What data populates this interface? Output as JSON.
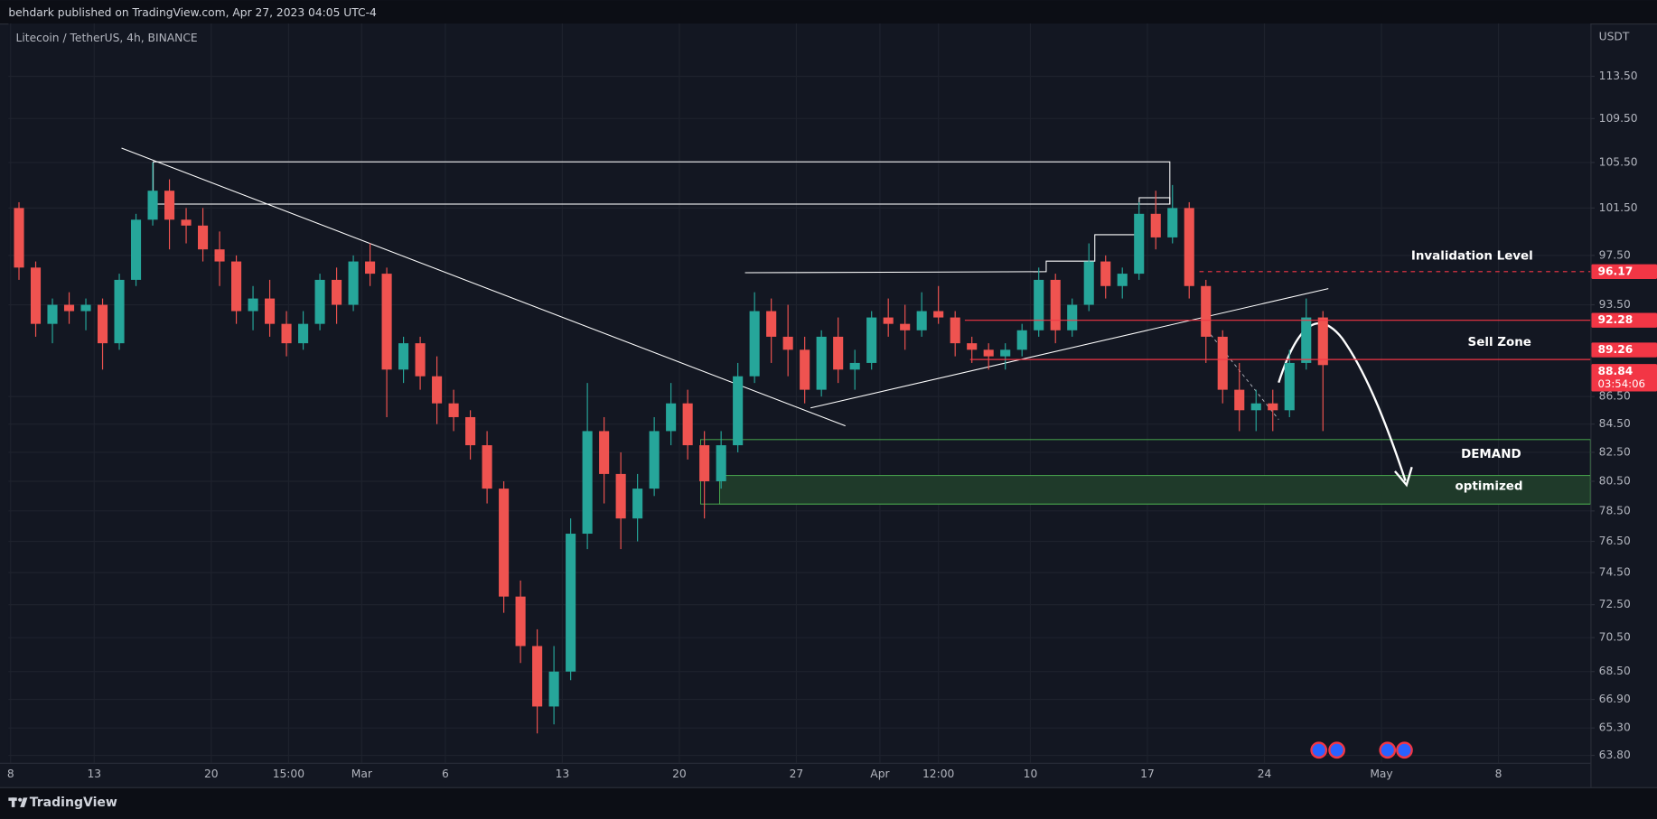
{
  "header": {
    "publisher": "behdark published on TradingView.com, Apr 27, 2023 04:05 UTC-4"
  },
  "footer": {
    "brand": "TradingView"
  },
  "chart_data": {
    "type": "candlestick",
    "title": "Litecoin / TetherUS, 4h, BINANCE",
    "y_axis_label": "USDT",
    "log_scale": true,
    "grid": true,
    "up_color": "#26a69a",
    "down_color": "#ef5350",
    "x": [
      0,
      1,
      2,
      3,
      4,
      5,
      6,
      7,
      8,
      9,
      10,
      11,
      12,
      13,
      14,
      15,
      16,
      17,
      18,
      19,
      20,
      21,
      22,
      23,
      24,
      25,
      26,
      27,
      28,
      29,
      30,
      31,
      32,
      33,
      34,
      35,
      36,
      37,
      38,
      39,
      40,
      41,
      42,
      43,
      44,
      45,
      46,
      47,
      48,
      49,
      50,
      51,
      52,
      53,
      54,
      55,
      56,
      57,
      58,
      59,
      60,
      61,
      62,
      63,
      64,
      65,
      66,
      67,
      68,
      69,
      70,
      71,
      72,
      73,
      74,
      75,
      76,
      77,
      78
    ],
    "open": [
      101.5,
      96.5,
      92,
      93.5,
      93,
      93.5,
      90.5,
      95.5,
      100.5,
      103,
      100.5,
      100,
      98,
      97,
      93,
      94,
      92,
      90.5,
      92,
      95.5,
      93.5,
      97,
      96,
      88.5,
      90.5,
      88,
      86,
      85,
      83,
      80,
      73,
      70,
      66.5,
      68.5,
      77,
      84,
      81,
      78,
      80,
      84,
      86,
      83,
      80.5,
      83,
      88,
      93,
      91,
      90,
      87,
      91,
      88.5,
      89,
      92.5,
      92,
      91.5,
      93,
      92.5,
      90.5,
      90,
      89.5,
      90,
      91.5,
      95.5,
      91.5,
      93.5,
      97,
      95,
      96,
      101,
      99,
      101.5,
      95,
      91,
      87,
      85.5,
      86,
      85.5,
      89,
      92.5
    ],
    "high": [
      102,
      97,
      94,
      94.5,
      94,
      94,
      96,
      101,
      105.5,
      104,
      101.5,
      101.5,
      99.5,
      97.5,
      95,
      95.5,
      93,
      93,
      96,
      96.5,
      97.5,
      98.5,
      96.5,
      91,
      91,
      89.5,
      87,
      85.5,
      84,
      80.5,
      74,
      71,
      70,
      78,
      87.5,
      85,
      82.5,
      81,
      85,
      87.5,
      87,
      84,
      84,
      89,
      94.5,
      94,
      93.5,
      91,
      91.5,
      92.5,
      90,
      93,
      94,
      93.5,
      94.5,
      95,
      93,
      91,
      90.5,
      90.5,
      92,
      96.5,
      96,
      94,
      98.5,
      97.5,
      96.5,
      102,
      103,
      103.5,
      102,
      95.5,
      91.5,
      89,
      87,
      87,
      90,
      94,
      93
    ],
    "low": [
      95.5,
      91,
      90.5,
      92,
      91.5,
      88.5,
      90,
      95,
      100,
      98,
      98.5,
      97,
      95,
      92,
      91.5,
      91,
      89.5,
      90,
      91.5,
      92,
      93,
      95,
      85,
      87.5,
      87,
      84.5,
      84,
      82,
      79,
      72,
      69,
      65,
      65.5,
      68,
      76,
      79,
      76,
      76.5,
      79.5,
      83,
      82,
      78,
      80,
      82.5,
      87.5,
      89,
      88,
      86,
      86.5,
      87.5,
      87,
      88.5,
      91,
      90,
      91,
      92,
      89.5,
      89,
      88.5,
      88.5,
      89.5,
      91,
      90.5,
      91,
      93,
      94,
      94,
      95.5,
      98,
      98.5,
      94,
      89,
      86,
      84,
      84,
      84,
      85,
      88.5,
      84
    ],
    "close": [
      96.5,
      92,
      93.5,
      93,
      93.5,
      90.5,
      95.5,
      100.5,
      103,
      100.5,
      100,
      98,
      97,
      93,
      94,
      92,
      90.5,
      92,
      95.5,
      93.5,
      97,
      96,
      88.5,
      90.5,
      88,
      86,
      85,
      83,
      80,
      73,
      70,
      66.5,
      68.5,
      77,
      84,
      81,
      78,
      80,
      84,
      86,
      83,
      80.5,
      83,
      88,
      93,
      91,
      90,
      87,
      91,
      88.5,
      89,
      92.5,
      92,
      91.5,
      93,
      92.5,
      90.5,
      90,
      89.5,
      90,
      91.5,
      95.5,
      91.5,
      93.5,
      97,
      95,
      96,
      101,
      99,
      101.5,
      95,
      91,
      87,
      85.5,
      86,
      85.5,
      89,
      92.5,
      88.84
    ],
    "xlim": [
      -0.13,
      94.5
    ],
    "ylim": [
      63.4,
      118.7
    ],
    "xticks": [
      {
        "value": 0,
        "label": "8"
      },
      {
        "value": 5,
        "label": "13"
      },
      {
        "value": 12,
        "label": "20"
      },
      {
        "value": 16.625,
        "label": "15:00"
      },
      {
        "value": 21,
        "label": "Mar"
      },
      {
        "value": 26,
        "label": "6"
      },
      {
        "value": 33,
        "label": "13"
      },
      {
        "value": 40,
        "label": "20"
      },
      {
        "value": 47,
        "label": "27"
      },
      {
        "value": 52,
        "label": "Apr"
      },
      {
        "value": 55.5,
        "label": "12:00"
      },
      {
        "value": 61,
        "label": "10"
      },
      {
        "value": 68,
        "label": "17"
      },
      {
        "value": 75,
        "label": "24"
      },
      {
        "value": 82,
        "label": "May"
      },
      {
        "value": 89,
        "label": "8"
      }
    ],
    "yticks": [
      {
        "value": 63.8,
        "label": "63.80"
      },
      {
        "value": 65.3,
        "label": "65.30"
      },
      {
        "value": 66.9,
        "label": "66.90"
      },
      {
        "value": 68.5,
        "label": "68.50"
      },
      {
        "value": 70.5,
        "label": "70.50"
      },
      {
        "value": 72.5,
        "label": "72.50"
      },
      {
        "value": 74.5,
        "label": "74.50"
      },
      {
        "value": 76.5,
        "label": "76.50"
      },
      {
        "value": 78.5,
        "label": "78.50"
      },
      {
        "value": 80.5,
        "label": "80.50"
      },
      {
        "value": 82.5,
        "label": "82.50"
      },
      {
        "value": 84.5,
        "label": "84.50"
      },
      {
        "value": 86.5,
        "label": "86.50"
      },
      {
        "value": 93.5,
        "label": "93.50"
      },
      {
        "value": 97.5,
        "label": "97.50"
      },
      {
        "value": 101.5,
        "label": "101.50"
      },
      {
        "value": 105.5,
        "label": "105.50"
      },
      {
        "value": 109.5,
        "label": "109.50"
      },
      {
        "value": 113.5,
        "label": "113.50"
      }
    ],
    "price_labels": [
      96.17,
      92.28,
      89.26,
      88.84
    ],
    "countdown": "03:54:06",
    "annotations": [
      "Invalidation Level",
      "Sell Zone",
      "DEMAND",
      "optimized"
    ]
  }
}
